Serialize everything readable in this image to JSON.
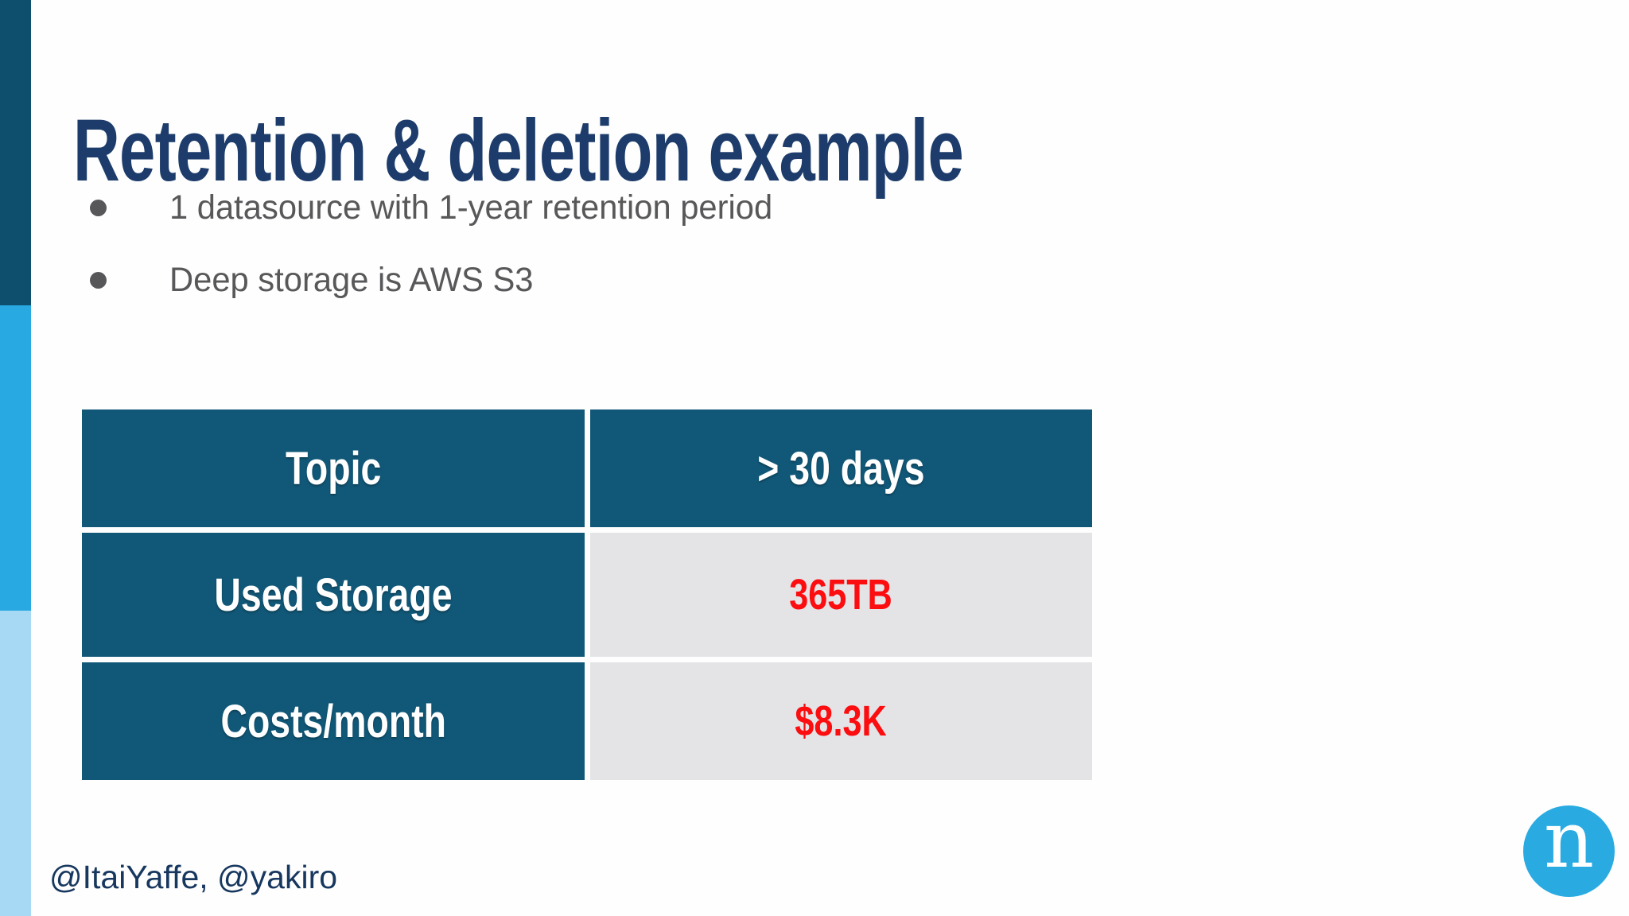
{
  "slide": {
    "title": "Retention & deletion example",
    "bullets": [
      "1 datasource with 1-year retention period",
      "Deep storage is AWS S3"
    ],
    "footer": "@ItaiYaffe, @yakiro",
    "logo_letter": "n"
  },
  "table": {
    "header": [
      "Topic",
      "> 30 days"
    ],
    "rows": [
      {
        "label": "Used Storage",
        "value": "365TB"
      },
      {
        "label": "Costs/month",
        "value": "$8.3K"
      }
    ]
  },
  "chart_data": {
    "type": "table",
    "title": "Retention & deletion example",
    "columns": [
      "Topic",
      "> 30 days"
    ],
    "rows": [
      [
        "Used Storage",
        "365TB"
      ],
      [
        "Costs/month",
        "$8.3K"
      ]
    ]
  },
  "colors": {
    "title_text": "#1d3c6b",
    "bullet_text": "#58585a",
    "bullet_dot": "#57575a",
    "cell_teal": "#115878",
    "cell_gray": "#e4e3e6",
    "value_red": "#fb0d10",
    "stripe_dark": "#0f4f6e",
    "stripe_medium": "#29a9e1",
    "stripe_light": "#a7d9f4",
    "footer_text": "#17375f",
    "logo_bg": "#29abe2"
  }
}
